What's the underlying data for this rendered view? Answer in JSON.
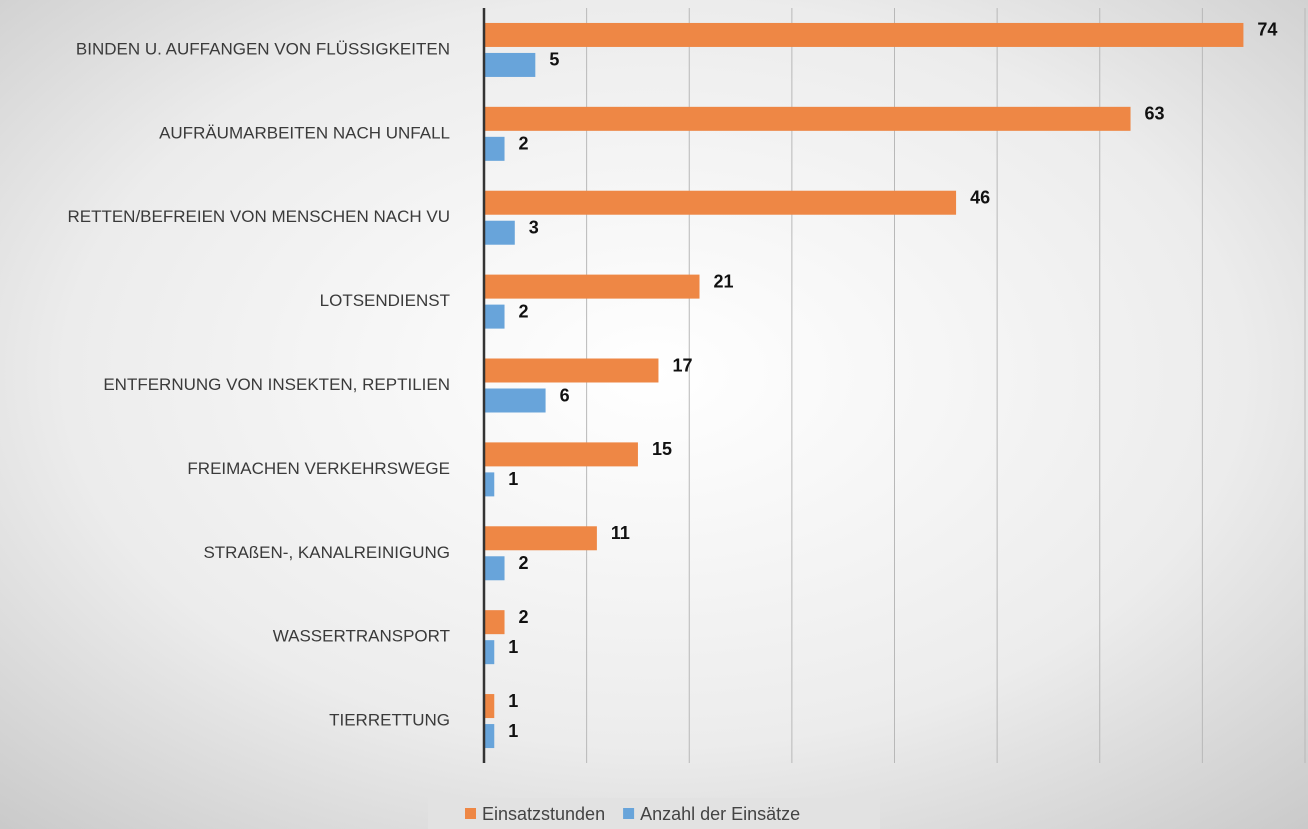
{
  "chart_data": {
    "type": "hbar",
    "categories": [
      "BINDEN U. AUFFANGEN VON FLÜSSIGKEITEN",
      "AUFRÄUMARBEITEN NACH UNFALL",
      "RETTEN/BEFREIEN VON MENSCHEN NACH VU",
      "LOTSENDIENST",
      "ENTFERNUNG VON INSEKTEN, REPTILIEN",
      "FREIMACHEN VERKEHRSWEGE",
      "STRAßEN-, KANALREINIGUNG",
      "WASSERTRANSPORT",
      "TIERRETTUNG"
    ],
    "series": [
      {
        "name": "Einsatzstunden",
        "color": "#ee8745",
        "values": [
          74,
          63,
          46,
          21,
          17,
          15,
          11,
          2,
          1
        ]
      },
      {
        "name": "Anzahl der Einsätze",
        "color": "#68a4da",
        "values": [
          5,
          2,
          3,
          2,
          6,
          1,
          2,
          1,
          1
        ]
      }
    ],
    "xlim": [
      0,
      80
    ],
    "xticks": [
      0,
      10,
      20,
      30,
      40,
      50,
      60,
      70,
      80
    ],
    "grid": true,
    "legend": "bottom"
  }
}
